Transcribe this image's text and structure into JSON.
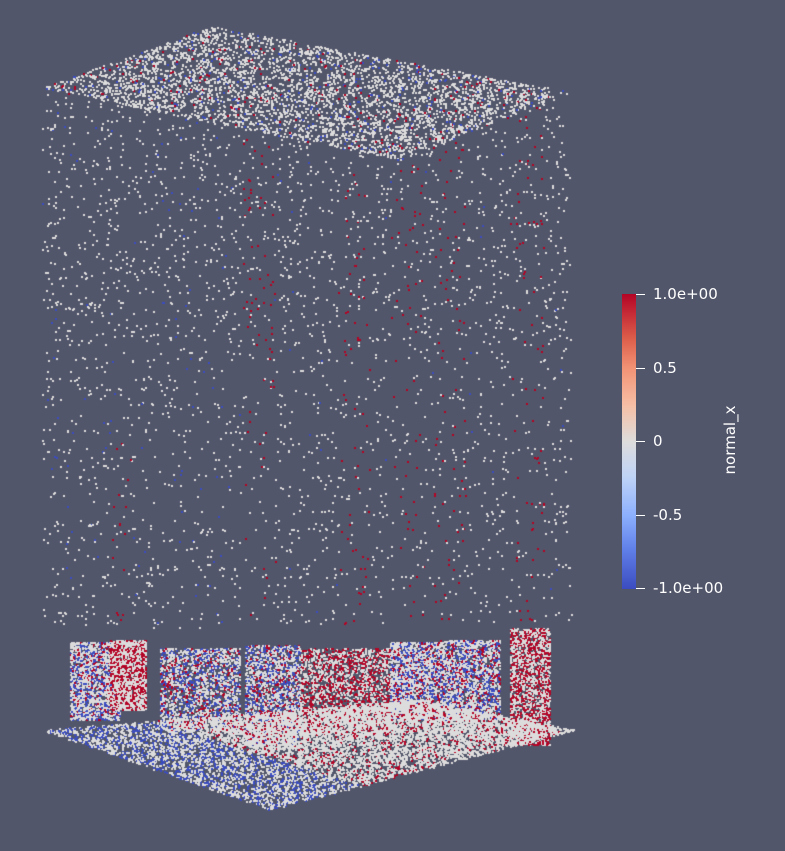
{
  "colorbar": {
    "title": "normal_x",
    "labels": [
      "1.0e+00",
      "0.5",
      "0",
      "-0.5",
      "-1.0e+00"
    ],
    "range": [
      -1.0,
      1.0
    ],
    "colormap": "Cool to Warm"
  },
  "colors": {
    "background": "#52566a",
    "positive": "#b40426",
    "neutral": "#dddcdc",
    "negative": "#3b4cc0"
  }
}
